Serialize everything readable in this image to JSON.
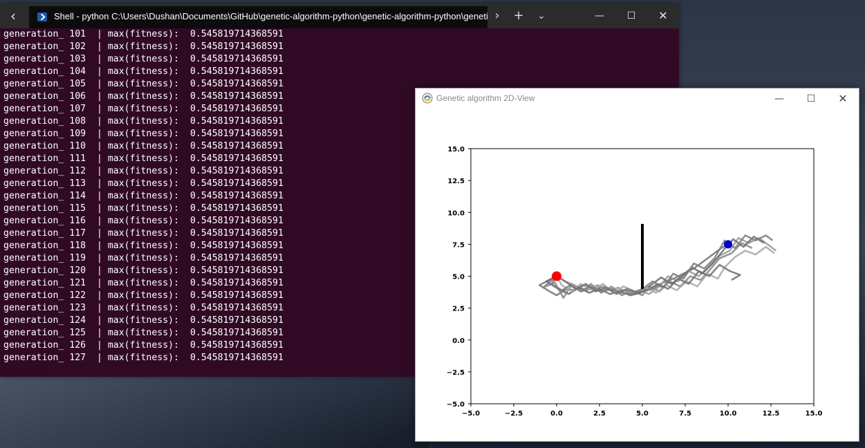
{
  "terminal": {
    "tab_title": "Shell - python  C:\\Users\\Dushan\\Documents\\GitHub\\genetic-algorithm-python\\genetic-algorithm-python\\genetic_algorithm",
    "icons": [
      "back-arrow-icon",
      "powershell-icon",
      "forward-arrow-icon",
      "plus-icon",
      "chevron-down-icon",
      "minimize-icon",
      "maximize-icon",
      "close-icon"
    ],
    "log_prefix": "generation_",
    "log_separator": "| max(fitness):",
    "log_lines": [
      {
        "generation": "101",
        "fitness": "0.545819714368591"
      },
      {
        "generation": "102",
        "fitness": "0.545819714368591"
      },
      {
        "generation": "103",
        "fitness": "0.545819714368591"
      },
      {
        "generation": "104",
        "fitness": "0.545819714368591"
      },
      {
        "generation": "105",
        "fitness": "0.545819714368591"
      },
      {
        "generation": "106",
        "fitness": "0.545819714368591"
      },
      {
        "generation": "107",
        "fitness": "0.545819714368591"
      },
      {
        "generation": "108",
        "fitness": "0.545819714368591"
      },
      {
        "generation": "109",
        "fitness": "0.545819714368591"
      },
      {
        "generation": "110",
        "fitness": "0.545819714368591"
      },
      {
        "generation": "111",
        "fitness": "0.545819714368591"
      },
      {
        "generation": "112",
        "fitness": "0.545819714368591"
      },
      {
        "generation": "113",
        "fitness": "0.545819714368591"
      },
      {
        "generation": "114",
        "fitness": "0.545819714368591"
      },
      {
        "generation": "115",
        "fitness": "0.545819714368591"
      },
      {
        "generation": "116",
        "fitness": "0.545819714368591"
      },
      {
        "generation": "117",
        "fitness": "0.545819714368591"
      },
      {
        "generation": "118",
        "fitness": "0.545819714368591"
      },
      {
        "generation": "119",
        "fitness": "0.545819714368591"
      },
      {
        "generation": "120",
        "fitness": "0.545819714368591"
      },
      {
        "generation": "121",
        "fitness": "0.545819714368591"
      },
      {
        "generation": "122",
        "fitness": "0.545819714368591"
      },
      {
        "generation": "123",
        "fitness": "0.545819714368591"
      },
      {
        "generation": "124",
        "fitness": "0.545819714368591"
      },
      {
        "generation": "125",
        "fitness": "0.545819714368591"
      },
      {
        "generation": "126",
        "fitness": "0.545819714368591"
      },
      {
        "generation": "127",
        "fitness": "0.545819714368591"
      }
    ]
  },
  "ga_window": {
    "title": "Genetic algorithm 2D-View",
    "icons": [
      "python-logo-icon",
      "minimize-icon",
      "maximize-icon",
      "close-icon"
    ]
  },
  "chart_data": {
    "type": "line",
    "xlim": [
      -5.0,
      15.0
    ],
    "ylim": [
      -5.0,
      15.0
    ],
    "x_ticks": [
      "−5.0",
      "−2.5",
      "0.0",
      "2.5",
      "5.0",
      "7.5",
      "10.0",
      "12.5",
      "15.0"
    ],
    "y_ticks": [
      "−5.0",
      "−2.5",
      "0.0",
      "2.5",
      "5.0",
      "7.5",
      "10.0",
      "12.5",
      "15.0"
    ],
    "x_tick_values": [
      -5.0,
      -2.5,
      0.0,
      2.5,
      5.0,
      7.5,
      10.0,
      12.5,
      15.0
    ],
    "y_tick_values": [
      -5.0,
      -2.5,
      0.0,
      2.5,
      5.0,
      7.5,
      10.0,
      12.5,
      15.0
    ],
    "grid": false,
    "start": {
      "x": 0.0,
      "y": 5.0,
      "color": "#ff0000"
    },
    "goal": {
      "x": 10.0,
      "y": 7.5,
      "color": "#0000cc"
    },
    "obstacle": {
      "x": 5.0,
      "y0": 4.0,
      "y1": 9.1,
      "color": "#000000"
    },
    "series": [
      {
        "color": "#777777",
        "points": [
          [
            0.0,
            5.0
          ],
          [
            -1.0,
            4.3
          ],
          [
            -0.4,
            3.8
          ],
          [
            0.0,
            3.5
          ],
          [
            0.6,
            4.0
          ],
          [
            1.0,
            3.9
          ],
          [
            1.6,
            4.3
          ],
          [
            2.2,
            4.0
          ],
          [
            2.8,
            4.2
          ],
          [
            3.4,
            3.8
          ],
          [
            4.0,
            3.9
          ],
          [
            4.5,
            3.6
          ],
          [
            5.0,
            3.8
          ],
          [
            5.6,
            4.0
          ],
          [
            6.2,
            4.5
          ],
          [
            6.8,
            4.8
          ],
          [
            7.4,
            5.2
          ],
          [
            8.0,
            5.6
          ],
          [
            8.6,
            6.2
          ],
          [
            9.2,
            6.8
          ],
          [
            9.6,
            7.2
          ],
          [
            10.0,
            7.5
          ]
        ]
      },
      {
        "color": "#888888",
        "points": [
          [
            0.0,
            5.0
          ],
          [
            -0.8,
            4.1
          ],
          [
            -0.1,
            4.5
          ],
          [
            0.4,
            3.3
          ],
          [
            0.9,
            4.4
          ],
          [
            1.5,
            3.8
          ],
          [
            2.0,
            4.4
          ],
          [
            2.6,
            3.7
          ],
          [
            3.2,
            4.2
          ],
          [
            3.8,
            3.5
          ],
          [
            4.4,
            3.9
          ],
          [
            5.0,
            3.5
          ],
          [
            5.4,
            4.2
          ],
          [
            6.0,
            3.8
          ],
          [
            6.6,
            4.6
          ],
          [
            7.2,
            4.2
          ],
          [
            7.8,
            5.0
          ],
          [
            8.4,
            4.7
          ],
          [
            9.0,
            5.6
          ],
          [
            9.5,
            6.4
          ],
          [
            10.2,
            6.8
          ],
          [
            10.8,
            7.6
          ],
          [
            11.4,
            7.2
          ]
        ]
      },
      {
        "color": "#999999",
        "points": [
          [
            0.0,
            5.0
          ],
          [
            0.5,
            4.6
          ],
          [
            1.2,
            4.2
          ],
          [
            1.8,
            3.9
          ],
          [
            2.4,
            4.3
          ],
          [
            3.0,
            3.9
          ],
          [
            3.6,
            4.1
          ],
          [
            4.2,
            3.7
          ],
          [
            4.8,
            3.9
          ],
          [
            5.4,
            3.6
          ],
          [
            6.0,
            4.2
          ],
          [
            6.5,
            5.0
          ],
          [
            7.1,
            4.6
          ],
          [
            7.7,
            5.4
          ],
          [
            8.3,
            5.0
          ],
          [
            8.9,
            5.8
          ],
          [
            9.5,
            6.6
          ],
          [
            10.1,
            7.0
          ],
          [
            10.6,
            8.0
          ],
          [
            11.2,
            7.6
          ],
          [
            11.8,
            8.0
          ],
          [
            12.4,
            7.4
          ],
          [
            12.8,
            7.0
          ]
        ]
      },
      {
        "color": "#6e6e6e",
        "points": [
          [
            0.0,
            5.0
          ],
          [
            -0.6,
            4.6
          ],
          [
            0.1,
            4.0
          ],
          [
            0.7,
            3.6
          ],
          [
            1.3,
            4.1
          ],
          [
            1.9,
            3.7
          ],
          [
            2.5,
            4.0
          ],
          [
            3.1,
            3.6
          ],
          [
            3.7,
            3.8
          ],
          [
            4.3,
            3.5
          ],
          [
            4.9,
            3.7
          ],
          [
            5.5,
            4.3
          ],
          [
            6.1,
            4.9
          ],
          [
            6.7,
            4.4
          ],
          [
            7.3,
            5.0
          ],
          [
            7.9,
            5.7
          ],
          [
            8.5,
            5.2
          ],
          [
            9.1,
            6.0
          ],
          [
            9.7,
            7.0
          ],
          [
            10.3,
            7.9
          ],
          [
            10.9,
            7.3
          ],
          [
            11.5,
            8.1
          ],
          [
            12.1,
            7.6
          ]
        ]
      },
      {
        "color": "#aaaaaa",
        "points": [
          [
            0.0,
            5.0
          ],
          [
            0.3,
            4.3
          ],
          [
            0.9,
            3.8
          ],
          [
            1.4,
            4.4
          ],
          [
            2.1,
            3.9
          ],
          [
            2.7,
            4.4
          ],
          [
            3.3,
            3.7
          ],
          [
            3.9,
            4.2
          ],
          [
            4.6,
            3.8
          ],
          [
            5.2,
            4.1
          ],
          [
            5.8,
            3.7
          ],
          [
            6.4,
            4.3
          ],
          [
            7.0,
            3.9
          ],
          [
            7.6,
            4.6
          ],
          [
            8.2,
            4.2
          ],
          [
            8.8,
            5.2
          ],
          [
            9.4,
            4.8
          ],
          [
            9.8,
            5.7
          ],
          [
            10.4,
            6.5
          ],
          [
            11.0,
            7.0
          ],
          [
            11.6,
            6.7
          ],
          [
            12.2,
            7.3
          ],
          [
            12.7,
            6.8
          ]
        ]
      },
      {
        "color": "#808080",
        "points": [
          [
            0.0,
            5.0
          ],
          [
            -0.3,
            4.4
          ],
          [
            0.3,
            3.9
          ],
          [
            0.8,
            4.3
          ],
          [
            1.4,
            3.8
          ],
          [
            2.0,
            4.2
          ],
          [
            2.6,
            3.8
          ],
          [
            3.2,
            4.0
          ],
          [
            3.8,
            3.7
          ],
          [
            4.4,
            3.6
          ],
          [
            5.0,
            4.0
          ],
          [
            5.6,
            4.6
          ],
          [
            6.2,
            4.1
          ],
          [
            6.8,
            5.2
          ],
          [
            7.4,
            4.8
          ],
          [
            8.0,
            6.0
          ],
          [
            8.6,
            5.6
          ],
          [
            9.2,
            6.4
          ],
          [
            9.8,
            7.8
          ],
          [
            10.4,
            7.2
          ],
          [
            11.0,
            8.2
          ],
          [
            11.6,
            7.8
          ],
          [
            12.2,
            8.2
          ],
          [
            12.6,
            7.8
          ]
        ]
      },
      {
        "color": "#737373",
        "points": [
          [
            0.0,
            5.0
          ],
          [
            0.6,
            4.5
          ],
          [
            1.1,
            4.0
          ],
          [
            1.7,
            4.4
          ],
          [
            2.3,
            3.8
          ],
          [
            2.9,
            4.1
          ],
          [
            3.5,
            3.6
          ],
          [
            4.1,
            4.0
          ],
          [
            4.7,
            3.7
          ],
          [
            5.3,
            3.9
          ],
          [
            5.9,
            4.4
          ],
          [
            6.5,
            4.0
          ],
          [
            7.1,
            4.8
          ],
          [
            7.7,
            4.4
          ],
          [
            8.3,
            5.4
          ],
          [
            8.9,
            5.0
          ],
          [
            9.5,
            5.9
          ],
          [
            10.1,
            5.4
          ],
          [
            10.7,
            5.1
          ],
          [
            10.2,
            4.7
          ]
        ]
      }
    ]
  }
}
